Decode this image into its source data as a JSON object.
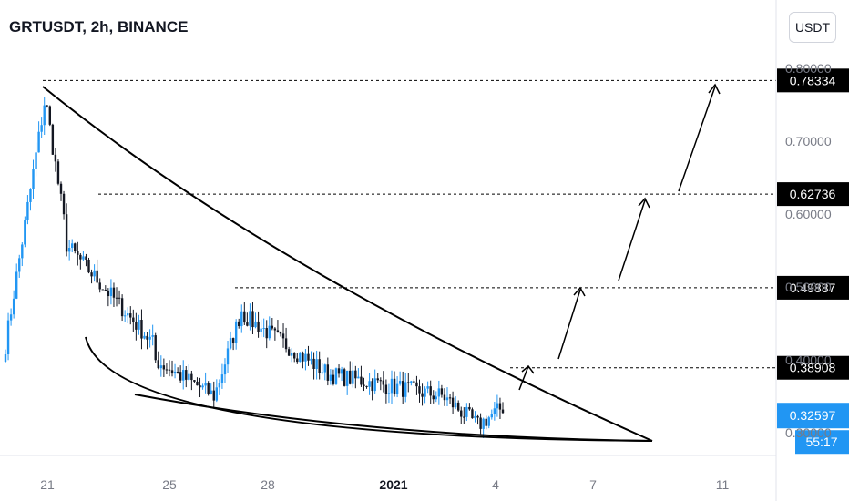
{
  "header": {
    "title": "GRTUSDT, 2h, BINANCE"
  },
  "toolbar": {
    "currency_label": "USDT"
  },
  "colors": {
    "up": "#26a69a",
    "down": "#131722",
    "bull_body": "#2196f3",
    "last_price_bg": "#2196f3",
    "label_bg": "#000000",
    "text": "#131722",
    "axis_text": "#787b86"
  },
  "chart_data": {
    "type": "candlestick",
    "title": "GRTUSDT, 2h, BINANCE",
    "xlabel": "",
    "ylabel": "",
    "x_ticks": [
      "21",
      "25",
      "28",
      "2021",
      "4",
      "7",
      "11"
    ],
    "y_ticks": [
      "0.80000",
      "0.70000",
      "0.60000",
      "0.50000",
      "0.40000",
      "0.30000"
    ],
    "ylim": [
      0.27,
      0.82
    ],
    "levels": [
      {
        "label": "0.78334",
        "value": 0.78334
      },
      {
        "label": "0.62736",
        "value": 0.62736
      },
      {
        "label": "0.49887",
        "value": 0.49887
      },
      {
        "label": "0.38908",
        "value": 0.38908
      }
    ],
    "last_price": {
      "label": "0.32597",
      "value": 0.32597,
      "countdown": "55:17"
    },
    "annotations": [
      "falling wedge",
      "projected upward path"
    ]
  }
}
